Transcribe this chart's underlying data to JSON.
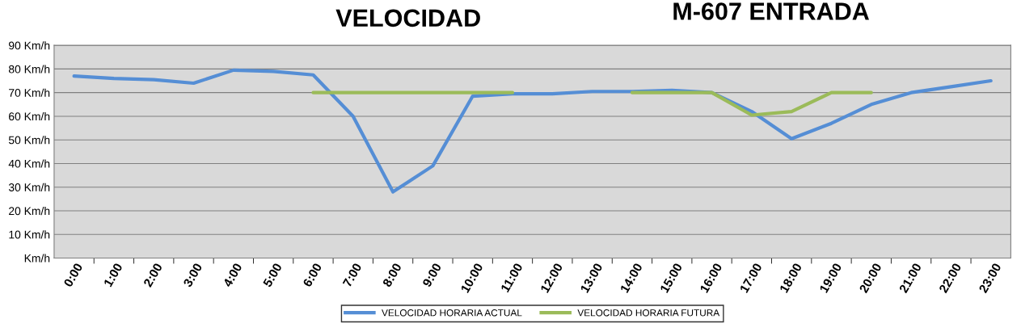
{
  "chart_data": {
    "type": "line",
    "title": "VELOCIDAD",
    "subtitle": "M-607 ENTRADA",
    "categories": [
      "0:00",
      "1:00",
      "2:00",
      "3:00",
      "4:00",
      "5:00",
      "6:00",
      "7:00",
      "8:00",
      "9:00",
      "10:00",
      "11:00",
      "12:00",
      "13:00",
      "14:00",
      "15:00",
      "16:00",
      "17:00",
      "18:00",
      "19:00",
      "20:00",
      "21:00",
      "22:00",
      "23:00"
    ],
    "series": [
      {
        "name": "VELOCIDAD HORARIA ACTUAL",
        "color": "#558ed5",
        "values": [
          77,
          76,
          75.5,
          74,
          79.5,
          79,
          77.5,
          60,
          28,
          39,
          68.5,
          69.5,
          69.5,
          70.5,
          70.5,
          71,
          70,
          62,
          50.5,
          57,
          65,
          70,
          72.5,
          75
        ]
      },
      {
        "name": "VELOCIDAD HORARIA FUTURA",
        "color": "#9bbb59",
        "values": [
          null,
          null,
          null,
          null,
          null,
          null,
          70,
          70,
          70,
          70,
          70,
          70,
          null,
          null,
          70,
          70,
          70,
          60.5,
          62,
          70,
          70,
          null,
          null,
          null
        ]
      }
    ],
    "ylim": [
      0,
      90
    ],
    "yticks": [
      {
        "value": 0,
        "label": "Km/h"
      },
      {
        "value": 10,
        "label": "10 Km/h"
      },
      {
        "value": 20,
        "label": "20 Km/h"
      },
      {
        "value": 30,
        "label": "30 Km/h"
      },
      {
        "value": 40,
        "label": "40 Km/h"
      },
      {
        "value": 50,
        "label": "50 Km/h"
      },
      {
        "value": 60,
        "label": "60 Km/h"
      },
      {
        "value": 70,
        "label": "70 Km/h"
      },
      {
        "value": 80,
        "label": "80 Km/h"
      },
      {
        "value": 90,
        "label": "90 Km/h"
      }
    ],
    "grid": "y",
    "legend": "bottom",
    "marker": "none",
    "line_style": "solid"
  }
}
